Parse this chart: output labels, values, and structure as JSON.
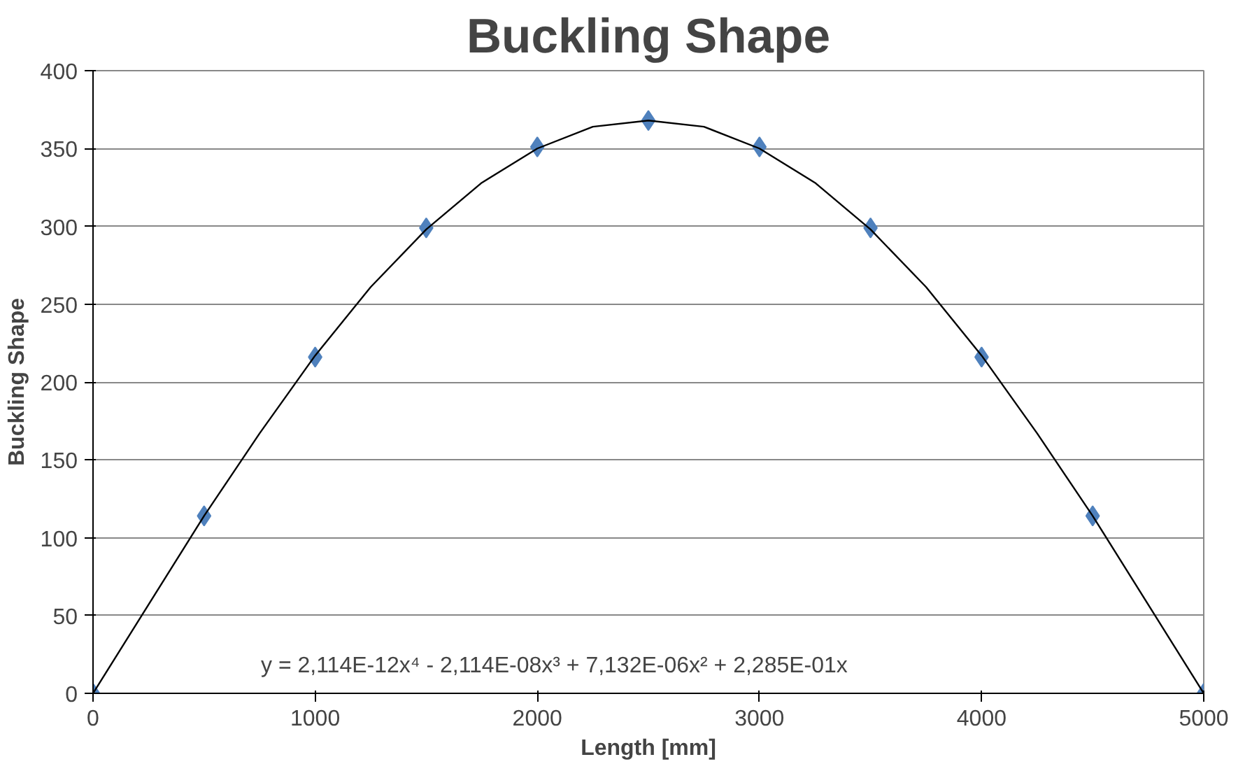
{
  "chart_data": {
    "type": "scatter",
    "title": "Buckling Shape",
    "xlabel": "Length [mm]",
    "ylabel": "Buckling Shape",
    "x": [
      0,
      500,
      1000,
      1500,
      2000,
      2500,
      3000,
      3500,
      4000,
      4500,
      5000
    ],
    "series": [
      {
        "marker": "diamond",
        "color": "#4f81bd",
        "values": [
          0,
          114,
          216,
          299,
          351,
          368,
          351,
          299,
          216,
          114,
          0
        ]
      },
      {
        "type": "line",
        "marker": "none",
        "color": "#000000",
        "x": [
          0,
          250,
          500,
          750,
          1000,
          1250,
          1500,
          1750,
          2000,
          2250,
          2500,
          2750,
          3000,
          3250,
          3500,
          3750,
          4000,
          4250,
          4500,
          4750,
          5000
        ],
        "values": [
          0,
          57,
          114,
          167,
          217,
          261,
          298,
          328,
          350,
          364,
          368,
          364,
          350,
          328,
          298,
          261,
          217,
          167,
          114,
          57,
          0
        ]
      }
    ],
    "xlim": [
      0,
      5000
    ],
    "ylim": [
      0,
      400
    ],
    "xticks": [
      0,
      1000,
      2000,
      3000,
      4000,
      5000
    ],
    "yticks": [
      0,
      50,
      100,
      150,
      200,
      250,
      300,
      350,
      400
    ],
    "grid": "y",
    "annotations": [
      "y = 2,114E-12x⁴ - 2,114E-08x³ + 7,132E-06x² + 2,285E-01x"
    ]
  }
}
